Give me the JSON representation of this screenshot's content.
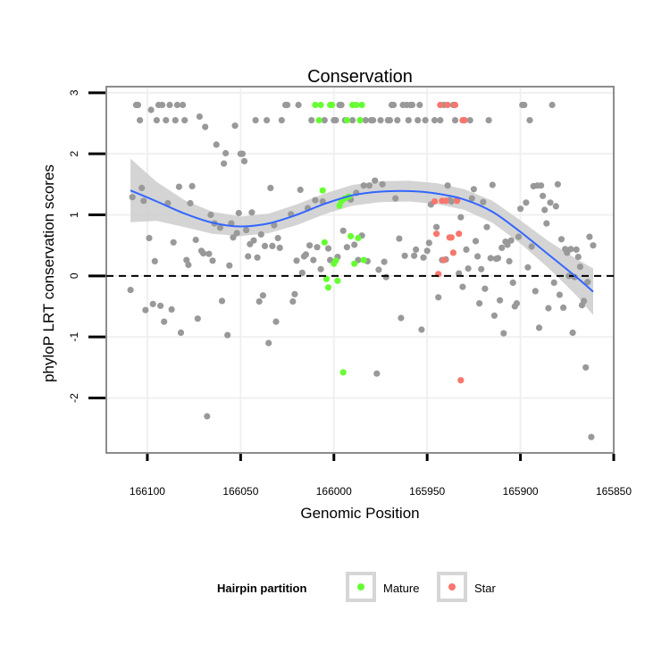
{
  "chart_data": {
    "type": "scatter",
    "title": "Conservation",
    "xlabel": "Genomic Position",
    "ylabel": "phyloP LRT conservation scores",
    "xlim": [
      166122,
      165850
    ],
    "ylim": [
      -2.9,
      3.1
    ],
    "xticks": [
      166100,
      166050,
      166000,
      165950,
      165900,
      165850
    ],
    "xtick_labels": [
      "166100",
      "166050",
      "166000",
      "165950",
      "165900",
      "165850"
    ],
    "yticks": [
      -2,
      -1,
      0,
      1,
      2,
      3
    ],
    "ytick_labels": [
      "-2",
      "-1",
      "0",
      "1",
      "2",
      "3"
    ],
    "reference_line": {
      "y": 0,
      "style": "dashed"
    },
    "legend": {
      "title": "Hairpin partition",
      "position": "bottom",
      "entries": [
        {
          "label": "Mature",
          "color": "#66ff33"
        },
        {
          "label": "Star",
          "color": "#f8766d"
        }
      ]
    },
    "colors": {
      "other": "#999999",
      "mature": "#66ff33",
      "star": "#f8766d",
      "smooth": "#3366ff",
      "band": "#cccccc"
    },
    "series": [
      {
        "name": "Other",
        "points": [
          [
            166109,
            -0.23
          ],
          [
            166108,
            1.29
          ],
          [
            166106,
            2.8
          ],
          [
            166105,
            2.8
          ],
          [
            166104,
            2.55
          ],
          [
            166103,
            1.44
          ],
          [
            166102,
            1.23
          ],
          [
            166101,
            -0.56
          ],
          [
            166099,
            0.62
          ],
          [
            166098,
            2.72
          ],
          [
            166097,
            -0.46
          ],
          [
            166096,
            0.24
          ],
          [
            166095,
            2.55
          ],
          [
            166094,
            2.8
          ],
          [
            166093,
            -0.49
          ],
          [
            166092,
            2.8
          ],
          [
            166091,
            -0.75
          ],
          [
            166090,
            2.55
          ],
          [
            166089,
            1.19
          ],
          [
            166088,
            2.8
          ],
          [
            166087,
            -0.55
          ],
          [
            166086,
            0.55
          ],
          [
            166085,
            2.55
          ],
          [
            166084,
            2.8
          ],
          [
            166083,
            1.46
          ],
          [
            166082,
            -0.93
          ],
          [
            166081,
            2.8
          ],
          [
            166080,
            2.55
          ],
          [
            166079,
            0.26
          ],
          [
            166078,
            0.18
          ],
          [
            166077,
            1.19
          ],
          [
            166076,
            1.47
          ],
          [
            166074,
            0.59
          ],
          [
            166073,
            -0.7
          ],
          [
            166072,
            2.61
          ],
          [
            166071,
            0.41
          ],
          [
            166070,
            0.37
          ],
          [
            166069,
            2.44
          ],
          [
            166068,
            -2.3
          ],
          [
            166067,
            0.36
          ],
          [
            166066,
            1.0
          ],
          [
            166065,
            0.25
          ],
          [
            166064,
            0.86
          ],
          [
            166063,
            2.15
          ],
          [
            166061,
            0.79
          ],
          [
            166060,
            -0.41
          ],
          [
            166059,
            1.84
          ],
          [
            166058,
            2.01
          ],
          [
            166057,
            -0.97
          ],
          [
            166056,
            0.17
          ],
          [
            166055,
            0.86
          ],
          [
            166054,
            0.63
          ],
          [
            166053,
            2.46
          ],
          [
            166052,
            0.7
          ],
          [
            166051,
            1.03
          ],
          [
            166050,
            2.0
          ],
          [
            166049,
            2.0
          ],
          [
            166048,
            1.88
          ],
          [
            166047,
            0.75
          ],
          [
            166046,
            0.32
          ],
          [
            166045,
            0.52
          ],
          [
            166044,
            1.04
          ],
          [
            166043,
            0.58
          ],
          [
            166042,
            2.55
          ],
          [
            166041,
            0.3
          ],
          [
            166040,
            -0.42
          ],
          [
            166039,
            0.68
          ],
          [
            166038,
            -0.32
          ],
          [
            166037,
            0.49
          ],
          [
            166036,
            2.55
          ],
          [
            166035,
            -1.1
          ],
          [
            166034,
            1.44
          ],
          [
            166033,
            0.49
          ],
          [
            166032,
            0.83
          ],
          [
            166031,
            -0.75
          ],
          [
            166030,
            0.62
          ],
          [
            166029,
            0.46
          ],
          [
            166028,
            2.55
          ],
          [
            166026,
            2.8
          ],
          [
            166025,
            2.8
          ],
          [
            166023,
            1.01
          ],
          [
            166022,
            -0.42
          ],
          [
            166021,
            -0.3
          ],
          [
            166020,
            0.25
          ],
          [
            166019,
            2.8
          ],
          [
            166018,
            1.41
          ],
          [
            166017,
            0.05
          ],
          [
            166016,
            0.32
          ],
          [
            166015,
            0.35
          ],
          [
            166014,
            1.11
          ],
          [
            166013,
            0.5
          ],
          [
            166012,
            2.55
          ],
          [
            166011,
            0.26
          ],
          [
            166010,
            1.24
          ],
          [
            166009,
            0.47
          ],
          [
            166007,
            0.11
          ],
          [
            166006,
            1.22
          ],
          [
            166005,
            2.55
          ],
          [
            166003,
            0.45
          ],
          [
            166002,
            0.26
          ],
          [
            166000,
            2.55
          ],
          [
            165999,
            2.55
          ],
          [
            165998,
            0.31
          ],
          [
            165997,
            2.8
          ],
          [
            165996,
            2.8
          ],
          [
            165995,
            0.74
          ],
          [
            165994,
            2.55
          ],
          [
            165993,
            0.47
          ],
          [
            165991,
            1.25
          ],
          [
            165990,
            2.55
          ],
          [
            165989,
            0.51
          ],
          [
            165988,
            1.36
          ],
          [
            165987,
            0.26
          ],
          [
            165986,
            2.55
          ],
          [
            165985,
            0.66
          ],
          [
            165984,
            1.48
          ],
          [
            165983,
            2.55
          ],
          [
            165982,
            0.24
          ],
          [
            165981,
            1.48
          ],
          [
            165980,
            2.55
          ],
          [
            165979,
            2.55
          ],
          [
            165978,
            1.56
          ],
          [
            165977,
            -1.6
          ],
          [
            165976,
            0.1
          ],
          [
            165975,
            2.55
          ],
          [
            165974,
            1.5
          ],
          [
            165973,
            0.23
          ],
          [
            165972,
            -0.02
          ],
          [
            165971,
            2.55
          ],
          [
            165970,
            2.55
          ],
          [
            165969,
            2.8
          ],
          [
            165968,
            2.8
          ],
          [
            165967,
            1.27
          ],
          [
            165966,
            2.55
          ],
          [
            165965,
            0.61
          ],
          [
            165964,
            -0.69
          ],
          [
            165963,
            2.8
          ],
          [
            165962,
            0.33
          ],
          [
            165961,
            2.8
          ],
          [
            165960,
            2.55
          ],
          [
            165959,
            2.8
          ],
          [
            165958,
            2.8
          ],
          [
            165957,
            0.33
          ],
          [
            165956,
            0.43
          ],
          [
            165955,
            2.55
          ],
          [
            165954,
            2.8
          ],
          [
            165953,
            -0.88
          ],
          [
            165952,
            0.3
          ],
          [
            165951,
            2.55
          ],
          [
            165950,
            0.41
          ],
          [
            165949,
            0.54
          ],
          [
            165948,
            1.17
          ],
          [
            165946,
            2.55
          ],
          [
            165945,
            0.8
          ],
          [
            165944,
            -0.35
          ],
          [
            165943,
            2.55
          ],
          [
            165942,
            0.26
          ],
          [
            165941,
            2.8
          ],
          [
            165940,
            0.27
          ],
          [
            165939,
            1.48
          ],
          [
            165938,
            1.24
          ],
          [
            165937,
            1.22
          ],
          [
            165936,
            2.8
          ],
          [
            165935,
            2.55
          ],
          [
            165934,
            1.25
          ],
          [
            165933,
            0.04
          ],
          [
            165932,
            0.96
          ],
          [
            165931,
            -0.18
          ],
          [
            165930,
            2.55
          ],
          [
            165929,
            0.43
          ],
          [
            165928,
            0.12
          ],
          [
            165927,
            2.55
          ],
          [
            165926,
            1.27
          ],
          [
            165925,
            1.42
          ],
          [
            165924,
            0.57
          ],
          [
            165923,
            0.32
          ],
          [
            165922,
            -0.45
          ],
          [
            165921,
            0.11
          ],
          [
            165920,
            1.21
          ],
          [
            165919,
            -0.21
          ],
          [
            165918,
            0.8
          ],
          [
            165917,
            2.55
          ],
          [
            165916,
            0.29
          ],
          [
            165915,
            1.49
          ],
          [
            165914,
            -0.65
          ],
          [
            165913,
            0.28
          ],
          [
            165912,
            0.29
          ],
          [
            165911,
            -0.4
          ],
          [
            165910,
            0.46
          ],
          [
            165909,
            -0.94
          ],
          [
            165908,
            0.56
          ],
          [
            165907,
            0.51
          ],
          [
            165906,
            0.24
          ],
          [
            165905,
            0.58
          ],
          [
            165904,
            -0.11
          ],
          [
            165903,
            -0.5
          ],
          [
            165902,
            -0.45
          ],
          [
            165901,
            0.64
          ],
          [
            165900,
            1.1
          ],
          [
            165899,
            2.8
          ],
          [
            165898,
            2.8
          ],
          [
            165897,
            1.2
          ],
          [
            165896,
            0.14
          ],
          [
            165895,
            2.55
          ],
          [
            165894,
            0.48
          ],
          [
            165893,
            1.47
          ],
          [
            165892,
            -0.25
          ],
          [
            165891,
            1.48
          ],
          [
            165890,
            -0.85
          ],
          [
            165889,
            1.48
          ],
          [
            165888,
            1.31
          ],
          [
            165887,
            1.08
          ],
          [
            165886,
            0.86
          ],
          [
            165885,
            -0.53
          ],
          [
            165884,
            1.2
          ],
          [
            165883,
            2.8
          ],
          [
            165882,
            -0.11
          ],
          [
            165881,
            1.14
          ],
          [
            165880,
            1.5
          ],
          [
            165879,
            -0.31
          ],
          [
            165878,
            0.6
          ],
          [
            165877,
            -0.52
          ],
          [
            165876,
            0.44
          ],
          [
            165875,
            0.38
          ],
          [
            165874,
            0.0
          ],
          [
            165873,
            0.44
          ],
          [
            165872,
            -0.93
          ],
          [
            165871,
            -0.02
          ],
          [
            165870,
            0.43
          ],
          [
            165869,
            0.31
          ],
          [
            165868,
            0.15
          ],
          [
            165867,
            -0.48
          ],
          [
            165866,
            -0.41
          ],
          [
            165865,
            -1.5
          ],
          [
            165864,
            -0.1
          ],
          [
            165863,
            0.64
          ],
          [
            165862,
            -2.64
          ],
          [
            165861,
            0.5
          ]
        ]
      },
      {
        "name": "Mature",
        "points": [
          [
            166010,
            2.8
          ],
          [
            166008,
            2.55
          ],
          [
            166007,
            2.8
          ],
          [
            166006,
            1.4
          ],
          [
            166005,
            0.55
          ],
          [
            166004,
            -0.05
          ],
          [
            166003,
            -0.19
          ],
          [
            166002,
            2.8
          ],
          [
            166001,
            2.8
          ],
          [
            166000,
            0.2
          ],
          [
            165999,
            0.25
          ],
          [
            165998,
            -0.08
          ],
          [
            165997,
            1.15
          ],
          [
            165996,
            1.22
          ],
          [
            165995,
            -1.58
          ],
          [
            165994,
            1.27
          ],
          [
            165993,
            2.55
          ],
          [
            165992,
            1.3
          ],
          [
            165991,
            0.65
          ],
          [
            165990,
            2.8
          ],
          [
            165989,
            0.2
          ],
          [
            165988,
            2.8
          ],
          [
            165987,
            0.62
          ],
          [
            165986,
            2.55
          ],
          [
            165985,
            2.8
          ],
          [
            165984,
            0.26
          ]
        ]
      },
      {
        "name": "Star",
        "points": [
          [
            165946,
            1.22
          ],
          [
            165945,
            0.69
          ],
          [
            165944,
            0.03
          ],
          [
            165943,
            2.8
          ],
          [
            165942,
            1.23
          ],
          [
            165941,
            0.26
          ],
          [
            165940,
            1.23
          ],
          [
            165939,
            2.8
          ],
          [
            165938,
            0.63
          ],
          [
            165937,
            0.63
          ],
          [
            165936,
            0.38
          ],
          [
            165935,
            2.8
          ],
          [
            165934,
            1.23
          ],
          [
            165933,
            0.69
          ],
          [
            165932,
            -1.71
          ],
          [
            165931,
            2.55
          ],
          [
            165930,
            2.55
          ]
        ]
      }
    ],
    "smooth": {
      "x": [
        166109,
        166095,
        166080,
        166065,
        166050,
        166035,
        166020,
        166005,
        165990,
        165975,
        165960,
        165945,
        165930,
        165915,
        165900,
        165885,
        165870,
        165861
      ],
      "y": [
        1.4,
        1.22,
        1.02,
        0.87,
        0.81,
        0.86,
        1.0,
        1.18,
        1.32,
        1.38,
        1.39,
        1.35,
        1.25,
        1.05,
        0.72,
        0.35,
        -0.02,
        -0.26
      ],
      "se": [
        0.52,
        0.32,
        0.22,
        0.18,
        0.16,
        0.16,
        0.17,
        0.17,
        0.17,
        0.17,
        0.17,
        0.17,
        0.17,
        0.18,
        0.19,
        0.22,
        0.3,
        0.38
      ]
    }
  }
}
